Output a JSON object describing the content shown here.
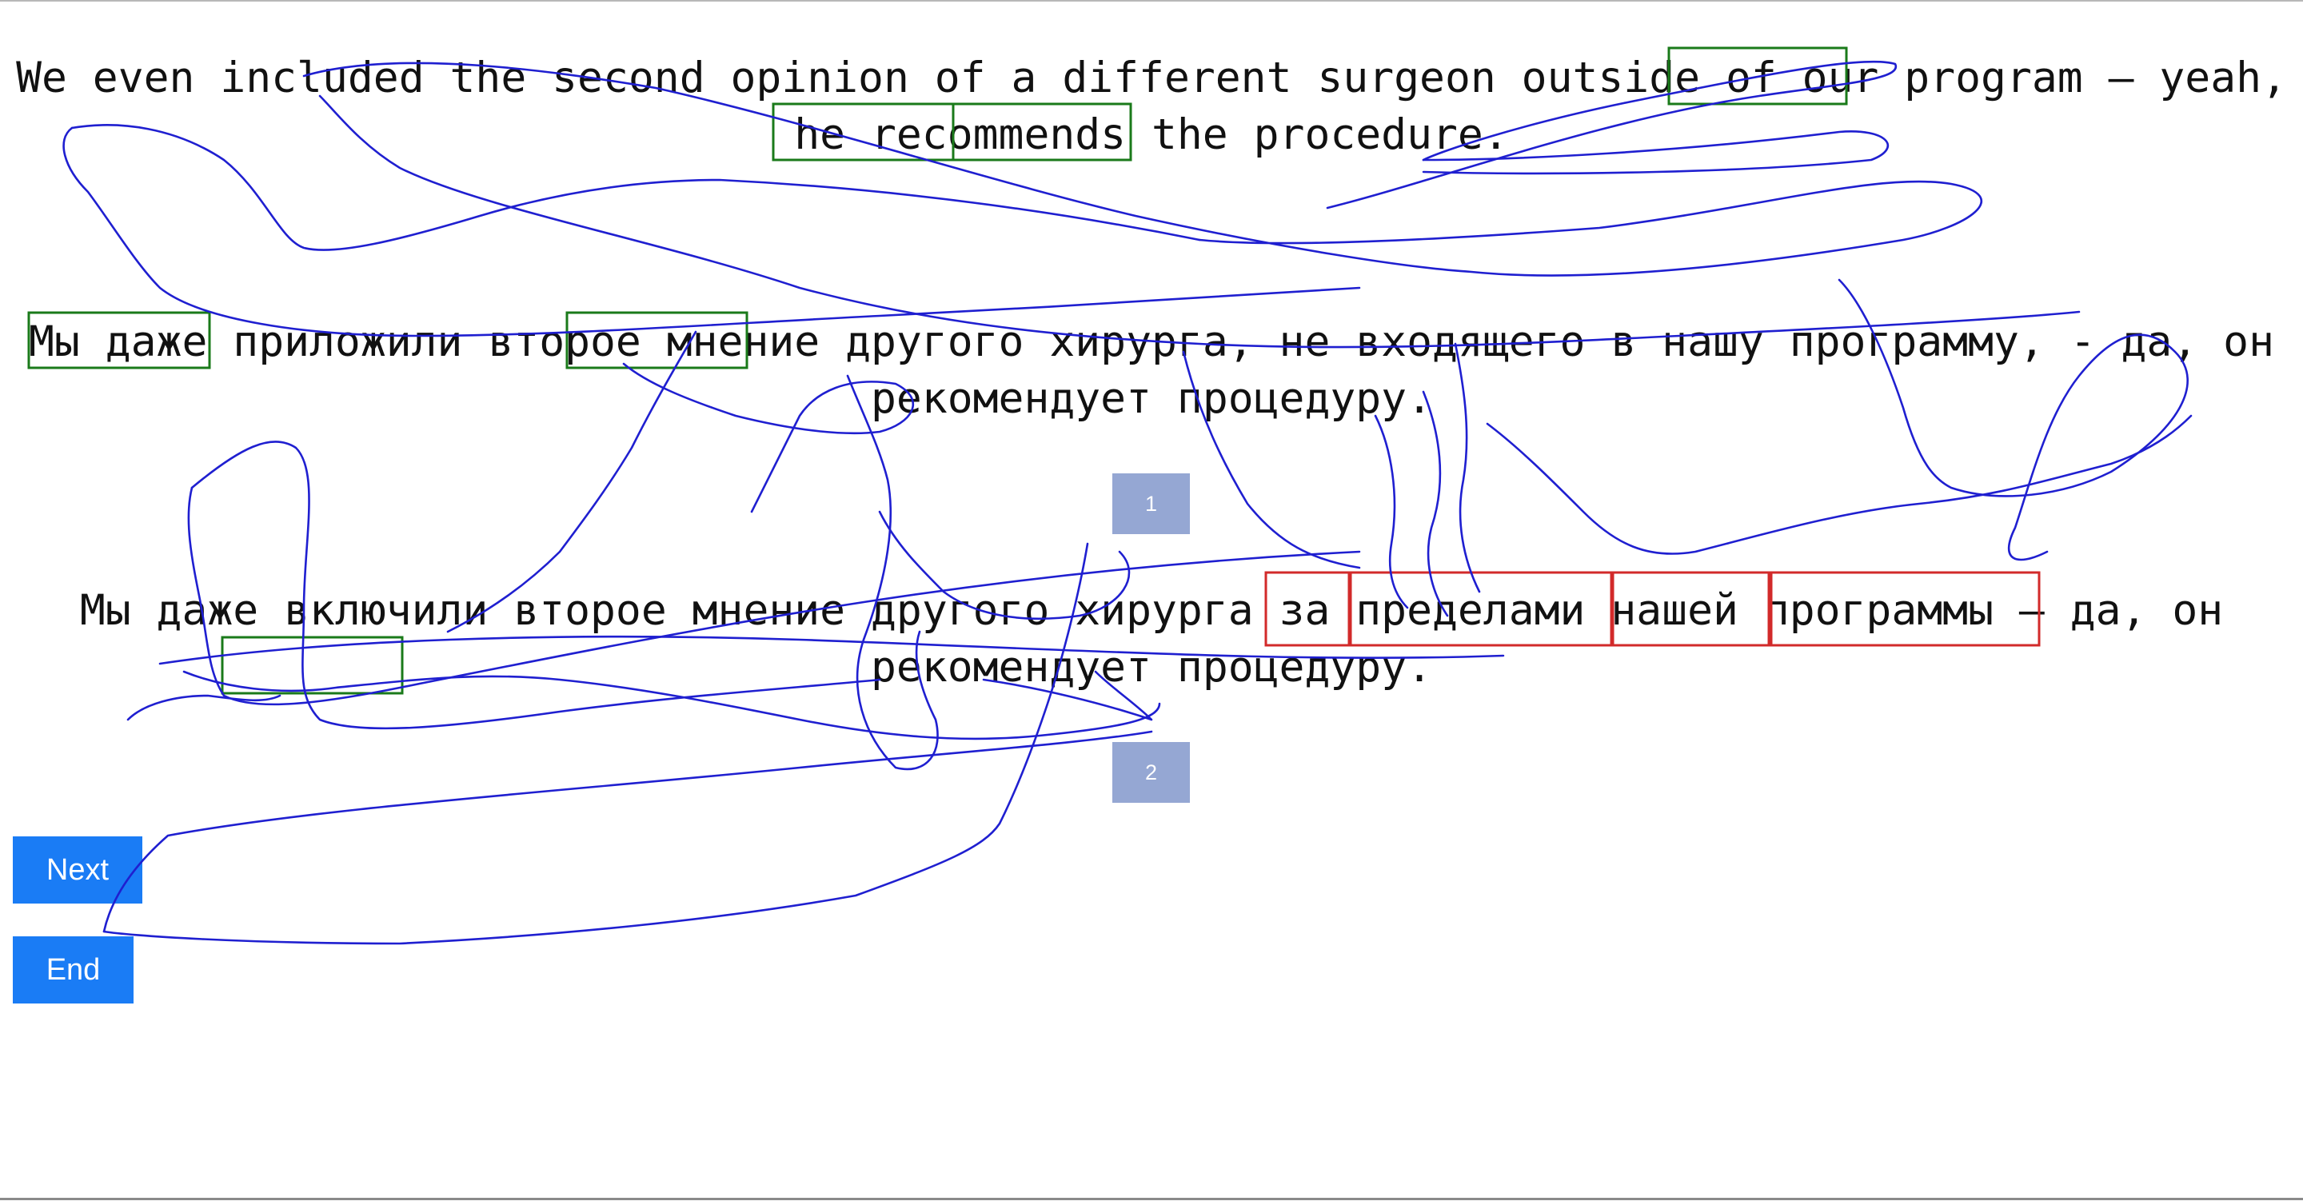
{
  "sentences": {
    "source": "We even included the second opinion of a different surgeon outside of our program — yeah, he recommends the procedure.",
    "translation_1": "Мы даже приложили второе мнение другого хирурга, не входящего в нашу программу, - да, он рекомендует процедуру.",
    "translation_2": "Мы даже включили второе мнение другого хирурга за пределами нашей программы — да, он рекомендует процедуру."
  },
  "badges": {
    "first": "1",
    "second": "2"
  },
  "buttons": {
    "next": "Next",
    "end": "End"
  },
  "colors": {
    "good_box": "#1a7a1a",
    "bad_box": "#d22a2a",
    "ink": "#1f1fd0",
    "button": "#1a7cf5",
    "badge": "#95a7d3"
  }
}
